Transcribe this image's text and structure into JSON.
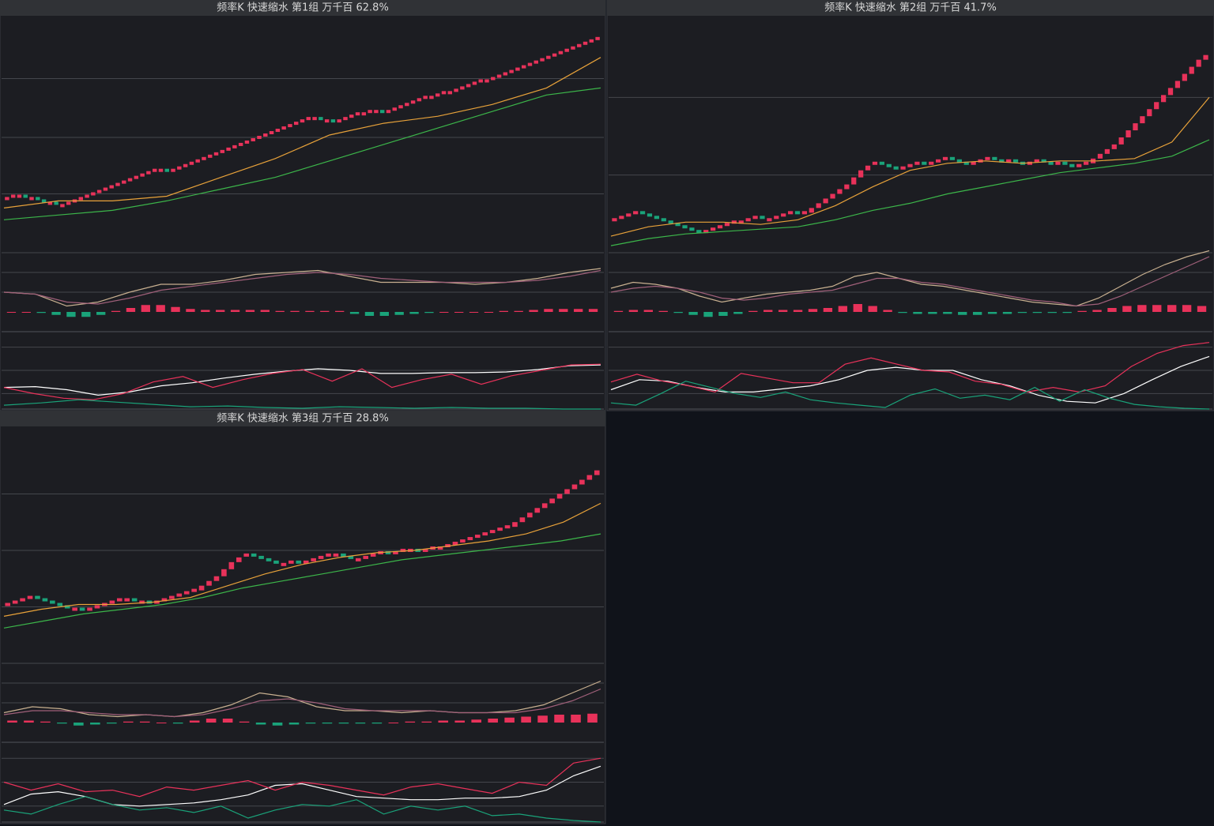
{
  "chart_data": [
    {
      "type": "renko",
      "title": "频率K  快速缩水  第1组  万千百  62.8%",
      "up_color": "#e8325a",
      "down_color": "#1aa37a",
      "ylim": [
        0,
        100
      ],
      "yticks": [
        0,
        25,
        49,
        74
      ],
      "closes": [
        23,
        24,
        24,
        23,
        23,
        22,
        21,
        21,
        20,
        20,
        21,
        22,
        23,
        24,
        25,
        26,
        27,
        28,
        29,
        30,
        31,
        32,
        33,
        34,
        35,
        35,
        34,
        35,
        36,
        37,
        38,
        39,
        40,
        41,
        42,
        43,
        44,
        45,
        46,
        47,
        48,
        49,
        50,
        51,
        52,
        53,
        54,
        55,
        56,
        57,
        57,
        56,
        56,
        55,
        56,
        57,
        58,
        59,
        59,
        60,
        60,
        59,
        60,
        61,
        62,
        63,
        64,
        65,
        66,
        66,
        67,
        68,
        68,
        69,
        70,
        71,
        72,
        73,
        73,
        74,
        75,
        76,
        77,
        78,
        79,
        80,
        81,
        82,
        83,
        84,
        85,
        86,
        87,
        88,
        89,
        90,
        91
      ],
      "lines": [
        {
          "color": "#e8a23a",
          "values": [
            19,
            22,
            22,
            24,
            32,
            40,
            50,
            55,
            58,
            63,
            70,
            83
          ]
        },
        {
          "color": "#3cb64a",
          "values": [
            14,
            16,
            18,
            22,
            27,
            32,
            39,
            46,
            53,
            60,
            67,
            70
          ]
        }
      ],
      "macd": {
        "ylim": [
          -10,
          30
        ],
        "yticks": [
          10,
          20
        ],
        "lines": [
          {
            "color": "#c8b090",
            "values": [
              10,
              9,
              3,
              5,
              10,
              14,
              14,
              16,
              19,
              20,
              21,
              18,
              15,
              15,
              15,
              14,
              15,
              17,
              20,
              22
            ]
          },
          {
            "color": "#a0607a",
            "values": [
              10,
              9,
              5,
              4,
              7,
              11,
              13,
              15,
              17,
              19,
              20,
              19,
              17,
              16,
              15,
              15,
              15,
              16,
              18,
              21
            ]
          }
        ],
        "hist": [
          0,
          0,
          -0.5,
          -1.5,
          -2.5,
          -2.5,
          -1.5,
          0.5,
          2,
          3.5,
          3.5,
          2.5,
          1.5,
          1,
          1,
          1,
          1,
          1,
          0.5,
          0.5,
          0.5,
          0.5,
          0.5,
          -1,
          -2,
          -2,
          -1.5,
          -1,
          -0.5,
          0,
          0,
          0,
          0,
          0.5,
          0.5,
          1,
          1.5,
          1.5,
          1.5,
          1.5
        ]
      },
      "kdj": {
        "ylim": [
          0,
          100
        ],
        "yticks": [
          20,
          50,
          80
        ],
        "lines": [
          {
            "color": "#ffffff",
            "values": [
              28,
              29,
              25,
              18,
              22,
              30,
              34,
              40,
              45,
              49,
              52,
              50,
              46,
              46,
              47,
              47,
              48,
              51,
              56,
              57
            ]
          },
          {
            "color": "#e8325a",
            "values": [
              28,
              20,
              14,
              12,
              20,
              35,
              42,
              28,
              38,
              46,
              51,
              36,
              52,
              28,
              38,
              45,
              32,
              43,
              50,
              57,
              58
            ]
          },
          {
            "color": "#1aa37a",
            "values": [
              5,
              8,
              12,
              9,
              6,
              3,
              4,
              2,
              1,
              3,
              2,
              1,
              2,
              1,
              1,
              0,
              0
            ]
          }
        ]
      }
    },
    {
      "type": "renko",
      "title": "频率K  快速缩水  第2组  万千百  41.7%",
      "up_color": "#e8325a",
      "down_color": "#1aa37a",
      "ylim": [
        0,
        100
      ],
      "yticks": [
        0,
        33,
        66
      ],
      "closes": [
        14,
        15,
        16,
        17,
        16,
        15,
        14,
        13,
        12,
        11,
        10,
        9,
        8,
        9,
        10,
        11,
        12,
        13,
        13,
        14,
        15,
        14,
        14,
        15,
        16,
        17,
        16,
        17,
        19,
        21,
        23,
        25,
        27,
        29,
        32,
        35,
        37,
        38,
        37,
        36,
        35,
        36,
        37,
        38,
        37,
        38,
        39,
        40,
        39,
        38,
        37,
        38,
        39,
        40,
        39,
        38,
        39,
        38,
        37,
        38,
        39,
        38,
        37,
        38,
        37,
        36,
        37,
        38,
        40,
        42,
        44,
        46,
        49,
        52,
        55,
        58,
        61,
        64,
        67,
        70,
        73,
        76,
        79,
        82,
        84
      ],
      "lines": [
        {
          "color": "#e8a23a",
          "values": [
            7,
            11,
            13,
            13,
            12,
            14,
            20,
            28,
            35,
            38,
            39,
            38,
            39,
            39,
            40,
            47,
            66
          ]
        },
        {
          "color": "#3cb64a",
          "values": [
            3,
            6,
            8,
            9,
            10,
            11,
            14,
            18,
            21,
            25,
            28,
            31,
            34,
            36,
            38,
            41,
            48
          ]
        }
      ],
      "macd": {
        "ylim": [
          -10,
          30
        ],
        "yticks": [
          10,
          20
        ],
        "lines": [
          {
            "color": "#c8b090",
            "values": [
              12,
              15,
              14,
              12,
              8,
              5,
              7,
              9,
              10,
              11,
              13,
              18,
              20,
              17,
              14,
              13,
              11,
              9,
              7,
              5,
              4,
              3,
              7,
              13,
              19,
              24,
              28,
              31
            ]
          },
          {
            "color": "#a0607a",
            "values": [
              10,
              12,
              13,
              12,
              10,
              7,
              6,
              7,
              9,
              10,
              11,
              14,
              17,
              17,
              15,
              14,
              12,
              10,
              8,
              6,
              5,
              3,
              4,
              8,
              13,
              18,
              23,
              28
            ]
          }
        ],
        "hist": [
          0.5,
          1,
          1,
          0.5,
          -0.5,
          -1.5,
          -2.5,
          -2,
          -1,
          0.5,
          1,
          1,
          1,
          1.5,
          2,
          3,
          4,
          3,
          1,
          -0.5,
          -1,
          -1,
          -1,
          -1.5,
          -1.5,
          -1,
          -1,
          -0.5,
          -0.5,
          -0.5,
          -0.5,
          0.5,
          1,
          2,
          3,
          3.5,
          3.5,
          3.5,
          3.5,
          3
        ]
      },
      "kdj": {
        "ylim": [
          0,
          100
        ],
        "yticks": [
          20,
          50,
          80
        ],
        "lines": [
          {
            "color": "#ffffff",
            "values": [
              25,
              38,
              36,
              28,
              22,
              22,
              26,
              30,
              38,
              50,
              54,
              50,
              50,
              38,
              30,
              18,
              10,
              8,
              20,
              38,
              55,
              68
            ]
          },
          {
            "color": "#e8325a",
            "values": [
              35,
              45,
              36,
              30,
              22,
              46,
              40,
              34,
              34,
              58,
              66,
              58,
              50,
              48,
              36,
              32,
              22,
              28,
              22,
              30,
              55,
              72,
              82,
              86
            ]
          },
          {
            "color": "#1aa37a",
            "values": [
              8,
              5,
              20,
              36,
              28,
              20,
              15,
              22,
              12,
              8,
              5,
              2,
              18,
              26,
              14,
              18,
              12,
              28,
              10,
              25,
              14,
              6,
              3,
              1,
              0
            ]
          }
        ]
      }
    },
    {
      "type": "renko",
      "title": "频率K  快速缩水  第3组  万千百  28.8%",
      "up_color": "#e8325a",
      "down_color": "#1aa37a",
      "ylim": [
        0,
        100
      ],
      "yticks": [
        0,
        24,
        48,
        72
      ],
      "closes": [
        25,
        26,
        27,
        28,
        27,
        26,
        25,
        24,
        23,
        23,
        22,
        23,
        24,
        25,
        26,
        27,
        27,
        26,
        26,
        25,
        26,
        27,
        28,
        29,
        30,
        31,
        33,
        35,
        37,
        40,
        43,
        45,
        46,
        45,
        44,
        43,
        42,
        42,
        43,
        42,
        43,
        44,
        45,
        46,
        46,
        45,
        44,
        44,
        45,
        46,
        47,
        46,
        47,
        48,
        48,
        47,
        48,
        49,
        49,
        50,
        51,
        52,
        53,
        54,
        55,
        56,
        57,
        58,
        60,
        62,
        64,
        66,
        68,
        70,
        72,
        74,
        76,
        78,
        80,
        82
      ],
      "lines": [
        {
          "color": "#e8a23a",
          "values": [
            20,
            23,
            25,
            25,
            26,
            28,
            33,
            38,
            42,
            45,
            47,
            48,
            50,
            52,
            55,
            60,
            68
          ]
        },
        {
          "color": "#3cb64a",
          "values": [
            15,
            18,
            21,
            23,
            25,
            28,
            32,
            35,
            38,
            41,
            44,
            46,
            48,
            50,
            52,
            55
          ]
        }
      ],
      "macd": {
        "ylim": [
          -10,
          30
        ],
        "yticks": [
          10,
          20
        ],
        "lines": [
          {
            "color": "#c8b090",
            "values": [
              5,
              8,
              7,
              4,
              3,
              4,
              3,
              5,
              9,
              15,
              13,
              8,
              6,
              6,
              5,
              6,
              5,
              5,
              6,
              9,
              15,
              21
            ]
          },
          {
            "color": "#a0607a",
            "values": [
              4,
              6,
              6,
              5,
              4,
              4,
              3,
              4,
              7,
              11,
              12,
              10,
              7,
              6,
              6,
              6,
              5,
              5,
              5,
              7,
              11,
              17
            ]
          }
        ],
        "hist": [
          1,
          1,
          0.5,
          -0.5,
          -1.5,
          -1,
          -0.5,
          0.5,
          0.5,
          0,
          -0.5,
          1,
          2,
          2,
          0.5,
          -1,
          -1.5,
          -1,
          -0.5,
          -0.5,
          -0.5,
          -0.5,
          -0.5,
          0,
          0.5,
          0.5,
          1,
          1,
          1.5,
          2,
          2.5,
          3,
          3.5,
          4,
          4,
          4.5
        ]
      },
      "kdj": {
        "ylim": [
          0,
          100
        ],
        "yticks": [
          20,
          50,
          80
        ],
        "lines": [
          {
            "color": "#ffffff",
            "values": [
              22,
              35,
              38,
              32,
              22,
              20,
              22,
              24,
              28,
              34,
              46,
              48,
              40,
              32,
              30,
              28,
              28,
              30,
              30,
              32,
              40,
              58,
              70
            ]
          },
          {
            "color": "#e8325a",
            "values": [
              50,
              40,
              48,
              38,
              40,
              32,
              44,
              40,
              46,
              52,
              40,
              50,
              46,
              40,
              34,
              44,
              48,
              42,
              36,
              50,
              46,
              74,
              80
            ]
          },
          {
            "color": "#1aa37a",
            "values": [
              15,
              10,
              22,
              32,
              22,
              15,
              18,
              12,
              20,
              5,
              15,
              22,
              20,
              28,
              10,
              20,
              15,
              20,
              8,
              10,
              5,
              2,
              0
            ]
          }
        ]
      }
    }
  ]
}
